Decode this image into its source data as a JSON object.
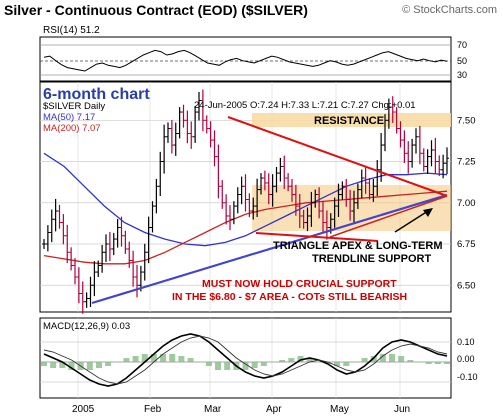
{
  "title": "Silver - Continuous Contract (EOD) ($SILVER)",
  "watermark": "© StockCharts.com",
  "colors": {
    "price": "#000000",
    "up_bar": "#000000",
    "down_bar": "#b0003a",
    "ma50": "#3333cc",
    "ma200": "#cc2222",
    "support_band": "#f6c67a",
    "triangle_upper": "#e01010",
    "trendline": "#4444cc",
    "callout_red": "#cc0000",
    "macd_line": "#000000",
    "macd_signal": "#333333",
    "macd_hist": "#88bb88",
    "heading_blue": "#2a3ea8",
    "rsi_line": "#000000"
  },
  "rsi_panel": {
    "label": "RSI(14) 51.2",
    "levels": [
      "70",
      "50",
      "30"
    ]
  },
  "chart_note": "6-month chart",
  "ohlc_header": "24-Jun-2005 O:7.24 H:7.33 L:7.21 C:7.27 Chg:+0.01",
  "legend": {
    "symbol": "$SILVER Daily",
    "ma50": "MA(50) 7.17",
    "ma200": "MA(200) 7.07"
  },
  "annotations": {
    "resistance": "RESISTANCE",
    "triangle_line1": "TRIANGLE APEX & LONG-TERM",
    "triangle_line2": "TRENDLINE SUPPORT",
    "support_line1": "MUST NOW HOLD CRUCIAL SUPPORT",
    "support_line2": "IN THE $6.80 - $7 AREA - COTs STILL BEARISH"
  },
  "macd_panel": {
    "label": "MACD(12,26,9) 0.03",
    "ticks": [
      "0.10",
      "0.00",
      "-0.10"
    ]
  },
  "chart_data": {
    "type": "line",
    "x_labels": [
      "2005",
      "Feb",
      "Mar",
      "Apr",
      "May",
      "Jun"
    ],
    "y_ticks": [
      "7.50",
      "7.25",
      "7.00",
      "6.75",
      "6.50"
    ],
    "ylim": [
      6.35,
      7.72
    ],
    "series": [
      {
        "values": [
          6.75,
          6.82,
          6.9,
          6.95,
          6.88,
          6.8,
          6.7,
          6.62,
          6.55,
          6.45,
          6.4,
          6.42,
          6.5,
          6.58,
          6.62,
          6.7,
          6.75,
          6.72,
          6.78,
          6.85,
          6.8,
          6.72,
          6.65,
          6.55,
          6.5,
          6.58,
          6.7,
          6.85,
          6.98,
          7.1,
          7.25,
          7.4,
          7.45,
          7.35,
          7.42,
          7.55,
          7.5,
          7.42,
          7.4,
          7.55,
          7.62,
          7.5,
          7.45,
          7.38,
          7.28,
          7.1,
          7.0,
          6.92,
          6.9,
          6.98,
          7.05,
          7.1,
          7.02,
          6.95,
          6.98,
          7.08,
          7.15,
          7.12,
          7.05,
          7.1,
          7.18,
          7.22,
          7.15,
          7.1,
          7.05,
          6.98,
          6.92,
          6.88,
          6.92,
          7.0,
          7.05,
          6.95,
          6.88,
          6.85,
          6.9,
          6.98,
          7.05,
          7.1,
          7.02,
          6.95,
          7.0,
          7.08,
          7.15,
          7.12,
          7.05,
          7.1,
          7.2,
          7.35,
          7.5,
          7.58,
          7.55,
          7.45,
          7.38,
          7.3,
          7.25,
          7.35,
          7.4,
          7.3,
          7.22,
          7.28,
          7.32,
          7.25,
          7.2,
          7.24,
          7.27
        ]
      },
      {
        "name": "MA(50) 7.17",
        "values": [
          7.3,
          7.22,
          7.1,
          6.98,
          6.88,
          6.82,
          6.78,
          6.75,
          6.74,
          6.76,
          6.8,
          6.86,
          6.92,
          6.98,
          7.04,
          7.1,
          7.14,
          7.17,
          7.17,
          7.18,
          7.17
        ]
      },
      {
        "name": "MA(200) 7.07",
        "values": [
          6.68,
          6.66,
          6.64,
          6.63,
          6.63,
          6.65,
          6.7,
          6.76,
          6.82,
          6.88,
          6.93,
          6.96,
          6.98,
          7.0,
          7.01,
          7.02,
          7.03,
          7.04,
          7.05,
          7.06,
          7.07
        ]
      }
    ],
    "rsi_values": [
      58,
      60,
      52,
      45,
      40,
      38,
      36,
      34,
      40,
      46,
      48,
      44,
      42,
      40,
      44,
      50,
      56,
      62,
      66,
      70,
      68,
      62,
      64,
      68,
      70,
      66,
      60,
      54,
      48,
      46,
      44,
      50,
      54,
      56,
      52,
      50,
      48,
      52,
      56,
      60,
      58,
      54,
      50,
      48,
      46,
      44,
      42,
      44,
      48,
      52,
      50,
      46,
      44,
      46,
      50,
      54,
      58,
      62,
      66,
      68,
      64,
      60,
      56,
      54,
      52,
      55,
      52,
      50,
      53,
      51
    ],
    "macd_values": [
      0.04,
      0.02,
      0.0,
      -0.03,
      -0.06,
      -0.09,
      -0.11,
      -0.12,
      -0.11,
      -0.08,
      -0.04,
      0.0,
      0.04,
      0.08,
      0.11,
      0.13,
      0.14,
      0.13,
      0.1,
      0.06,
      0.02,
      -0.02,
      -0.05,
      -0.07,
      -0.08,
      -0.07,
      -0.05,
      -0.02,
      0.01,
      0.02,
      0.01,
      -0.01,
      -0.04,
      -0.06,
      -0.05,
      -0.02,
      0.02,
      0.07,
      0.1,
      0.11,
      0.1,
      0.08,
      0.06,
      0.04,
      0.03
    ],
    "macd_signal_values": [
      0.06,
      0.05,
      0.03,
      0.01,
      -0.02,
      -0.05,
      -0.08,
      -0.1,
      -0.11,
      -0.1,
      -0.07,
      -0.04,
      0.0,
      0.04,
      0.07,
      0.1,
      0.12,
      0.13,
      0.12,
      0.1,
      0.06,
      0.02,
      -0.01,
      -0.04,
      -0.06,
      -0.07,
      -0.06,
      -0.04,
      -0.02,
      0.0,
      0.01,
      0.0,
      -0.02,
      -0.04,
      -0.05,
      -0.04,
      -0.01,
      0.03,
      0.06,
      0.08,
      0.09,
      0.08,
      0.07,
      0.05,
      0.04
    ]
  }
}
